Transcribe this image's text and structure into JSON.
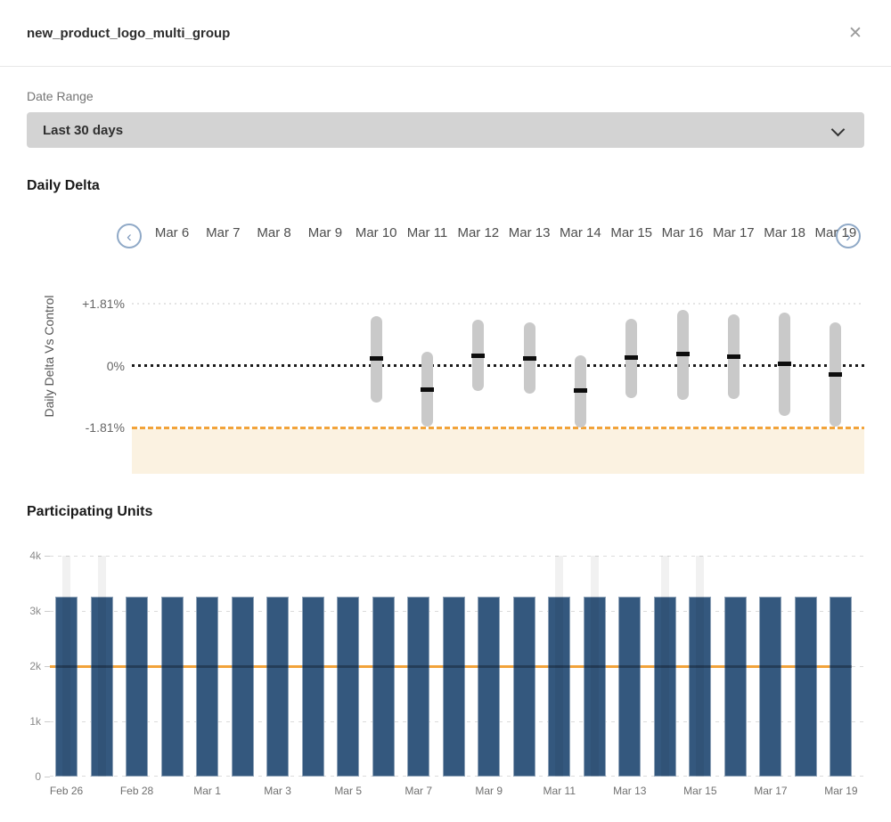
{
  "modal": {
    "title": "new_product_logo_multi_group",
    "close_glyph": "✕"
  },
  "filters": {
    "date_range_label": "Date Range",
    "date_range_value": "Last 30 days"
  },
  "daily_delta": {
    "heading": "Daily Delta",
    "prev_glyph": "‹",
    "next_glyph": "›",
    "nav_dates": [
      "Mar 6",
      "Mar 7",
      "Mar 8",
      "Mar 9",
      "Mar 10",
      "Mar 11",
      "Mar 12",
      "Mar 13",
      "Mar 14",
      "Mar 15",
      "Mar 16",
      "Mar 17",
      "Mar 18",
      "Mar 19"
    ],
    "y_axis_title": "Daily Delta Vs Control"
  },
  "participating_units": {
    "heading": "Participating Units"
  },
  "colors": {
    "bar_navy": "#34587e",
    "range_gray": "#c9c9c9",
    "accent_orange": "#f2a33a",
    "threshold_band": "#fbf2e1",
    "nav_circle_border": "#8fa9c7"
  },
  "chart_data": [
    {
      "type": "range-bar",
      "title": "Daily Delta",
      "ylabel": "Daily Delta Vs Control",
      "unit": "%",
      "categories": [
        "Mar 6",
        "Mar 7",
        "Mar 8",
        "Mar 9",
        "Mar 10",
        "Mar 11",
        "Mar 12",
        "Mar 13",
        "Mar 14",
        "Mar 15",
        "Mar 16",
        "Mar 17",
        "Mar 18",
        "Mar 19"
      ],
      "yticks": [
        {
          "label": "+1.81%",
          "value": 1.81
        },
        {
          "label": "0%",
          "value": 0
        },
        {
          "label": "-1.81%",
          "value": -1.81
        }
      ],
      "threshold": {
        "value": -1.81
      },
      "series": [
        {
          "name": "daily_delta_vs_control",
          "points": [
            null,
            null,
            null,
            null,
            {
              "high": 1.45,
              "low": -1.08,
              "mean": 0.2
            },
            {
              "high": 0.4,
              "low": -1.79,
              "mean": -0.7
            },
            {
              "high": 1.33,
              "low": -0.74,
              "mean": 0.28
            },
            {
              "high": 1.27,
              "low": -0.81,
              "mean": 0.22
            },
            {
              "high": 0.31,
              "low": -1.82,
              "mean": -0.74
            },
            {
              "high": 1.36,
              "low": -0.95,
              "mean": 0.24
            },
            {
              "high": 1.62,
              "low": -1.0,
              "mean": 0.33
            },
            {
              "high": 1.5,
              "low": -0.98,
              "mean": 0.26
            },
            {
              "high": 1.56,
              "low": -1.46,
              "mean": 0.05
            },
            {
              "high": 1.27,
              "low": -1.79,
              "mean": -0.26
            }
          ]
        }
      ]
    },
    {
      "type": "bar",
      "title": "Participating Units",
      "categories": [
        "Feb 26",
        "Feb 27",
        "Feb 28",
        "Feb 29",
        "Mar 1",
        "Mar 2",
        "Mar 3",
        "Mar 4",
        "Mar 5",
        "Mar 6",
        "Mar 7",
        "Mar 8",
        "Mar 9",
        "Mar 10",
        "Mar 11",
        "Mar 12",
        "Mar 13",
        "Mar 14",
        "Mar 15",
        "Mar 16",
        "Mar 17",
        "Mar 18",
        "Mar 19"
      ],
      "values": [
        3255,
        3255,
        3255,
        3255,
        3255,
        3255,
        3255,
        3255,
        3255,
        3255,
        3255,
        3255,
        3255,
        3255,
        3255,
        3255,
        3255,
        3255,
        3255,
        3255,
        3255,
        3255,
        3255
      ],
      "control_line": {
        "value": 2000
      },
      "highlighted_categories": [
        "Feb 26",
        "Feb 27",
        "Mar 11",
        "Mar 12",
        "Mar 14",
        "Mar 15"
      ],
      "yticks": [
        {
          "label": "0",
          "value": 0
        },
        {
          "label": "1k",
          "value": 1000
        },
        {
          "label": "2k",
          "value": 2000
        },
        {
          "label": "3k",
          "value": 3000
        },
        {
          "label": "4k",
          "value": 4000
        }
      ],
      "ylim": [
        0,
        4000
      ],
      "x_tick_labels": [
        "Feb 26",
        "Feb 28",
        "Mar 1",
        "Mar 3",
        "Mar 5",
        "Mar 7",
        "Mar 9",
        "Mar 11",
        "Mar 13",
        "Mar 15",
        "Mar 17",
        "Mar 19"
      ]
    }
  ]
}
